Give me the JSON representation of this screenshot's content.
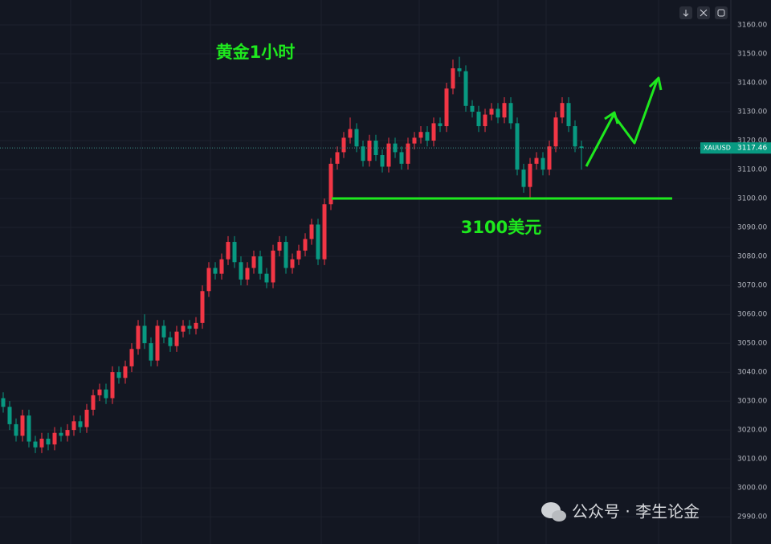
{
  "chart_data": {
    "type": "candlestick",
    "title": "黄金1小时",
    "symbol": "XAUUSD",
    "level": 3100,
    "level_label": "3100美元",
    "watermark": "公众号 · 李生论金",
    "up_color": "#f23645",
    "down_color": "#089981",
    "level_color": "#1ee81e",
    "open": [
      3031,
      3028,
      3022,
      3018,
      3025,
      3016,
      3014,
      3017,
      3015,
      3019,
      3018,
      3020,
      3023,
      3021,
      3027,
      3032,
      3034,
      3031,
      3040,
      3038,
      3042,
      3048,
      3056,
      3050,
      3044,
      3056,
      3052,
      3049,
      3054,
      3056,
      3055,
      3057,
      3068,
      3076,
      3074,
      3079,
      3085,
      3078,
      3072,
      3076,
      3080,
      3074,
      3071,
      3082,
      3085,
      3076,
      3079,
      3082,
      3086,
      3091,
      3079,
      3098,
      3112,
      3116,
      3121,
      3124,
      3118,
      3113,
      3120,
      3115,
      3111,
      3119,
      3116,
      3112,
      3119,
      3121,
      3123,
      3120,
      3126,
      3125,
      3138,
      3145,
      3144,
      3132,
      3130,
      3125,
      3129,
      3131,
      3128,
      3133,
      3126,
      3110,
      3104,
      3112,
      3114,
      3110,
      3118,
      3128,
      3133,
      3125,
      3118
    ],
    "high": [
      3033,
      3030,
      3024,
      3027,
      3027,
      3018,
      3019,
      3019,
      3021,
      3021,
      3022,
      3025,
      3025,
      3029,
      3034,
      3036,
      3036,
      3042,
      3042,
      3044,
      3050,
      3058,
      3060,
      3052,
      3058,
      3058,
      3054,
      3056,
      3058,
      3058,
      3059,
      3070,
      3078,
      3078,
      3081,
      3087,
      3087,
      3080,
      3078,
      3082,
      3082,
      3076,
      3084,
      3087,
      3087,
      3081,
      3084,
      3088,
      3093,
      3093,
      3100,
      3114,
      3118,
      3123,
      3128,
      3126,
      3120,
      3122,
      3122,
      3117,
      3121,
      3121,
      3118,
      3121,
      3123,
      3125,
      3125,
      3128,
      3128,
      3140,
      3148,
      3149,
      3146,
      3134,
      3132,
      3131,
      3133,
      3133,
      3135,
      3135,
      3128,
      3112,
      3114,
      3116,
      3116,
      3120,
      3130,
      3135,
      3135,
      3127,
      3120
    ],
    "low": [
      3026,
      3020,
      3016,
      3016,
      3014,
      3012,
      3012,
      3013,
      3013,
      3016,
      3016,
      3018,
      3019,
      3019,
      3025,
      3030,
      3029,
      3029,
      3036,
      3036,
      3040,
      3046,
      3048,
      3042,
      3042,
      3050,
      3047,
      3047,
      3052,
      3053,
      3053,
      3055,
      3066,
      3072,
      3072,
      3077,
      3076,
      3070,
      3070,
      3074,
      3072,
      3069,
      3069,
      3080,
      3074,
      3074,
      3077,
      3080,
      3084,
      3077,
      3077,
      3096,
      3110,
      3114,
      3119,
      3116,
      3111,
      3111,
      3113,
      3109,
      3109,
      3114,
      3110,
      3110,
      3117,
      3119,
      3118,
      3118,
      3123,
      3123,
      3136,
      3142,
      3130,
      3128,
      3123,
      3123,
      3127,
      3126,
      3126,
      3124,
      3108,
      3102,
      3100,
      3110,
      3108,
      3108,
      3116,
      3126,
      3123,
      3116,
      3110
    ],
    "close": [
      3028,
      3022,
      3018,
      3025,
      3016,
      3014,
      3017,
      3015,
      3019,
      3018,
      3020,
      3023,
      3021,
      3027,
      3032,
      3034,
      3031,
      3040,
      3038,
      3042,
      3048,
      3056,
      3050,
      3044,
      3056,
      3052,
      3049,
      3054,
      3056,
      3055,
      3057,
      3068,
      3076,
      3074,
      3079,
      3085,
      3078,
      3072,
      3076,
      3080,
      3074,
      3071,
      3082,
      3085,
      3076,
      3079,
      3082,
      3086,
      3091,
      3079,
      3098,
      3112,
      3116,
      3121,
      3124,
      3118,
      3113,
      3120,
      3115,
      3111,
      3119,
      3116,
      3112,
      3119,
      3121,
      3123,
      3120,
      3126,
      3125,
      3138,
      3145,
      3144,
      3132,
      3130,
      3125,
      3129,
      3131,
      3128,
      3133,
      3126,
      3110,
      3104,
      3112,
      3114,
      3110,
      3118,
      3128,
      3133,
      3125,
      3118,
      3117.46
    ],
    "ylim": [
      2980.6,
      3168.6
    ],
    "yticks": [
      {
        "value": 2990,
        "label": "2990.00"
      },
      {
        "value": 3000,
        "label": "3000.00"
      },
      {
        "value": 3010,
        "label": "3010.00"
      },
      {
        "value": 3020,
        "label": "3020.00"
      },
      {
        "value": 3030,
        "label": "3030.00"
      },
      {
        "value": 3040,
        "label": "3040.00"
      },
      {
        "value": 3050,
        "label": "3050.00"
      },
      {
        "value": 3060,
        "label": "3060.00"
      },
      {
        "value": 3070,
        "label": "3070.00"
      },
      {
        "value": 3080,
        "label": "3080.00"
      },
      {
        "value": 3090,
        "label": "3090.00"
      },
      {
        "value": 3100,
        "label": "3100.00"
      },
      {
        "value": 3110,
        "label": "3110.00"
      },
      {
        "value": 3120,
        "label": "3120.00"
      },
      {
        "value": 3130,
        "label": "3130.00"
      },
      {
        "value": 3140,
        "label": "3140.00"
      },
      {
        "value": 3150,
        "label": "3150.00"
      },
      {
        "value": 3160,
        "label": "3160.00"
      }
    ],
    "grid": true
  }
}
